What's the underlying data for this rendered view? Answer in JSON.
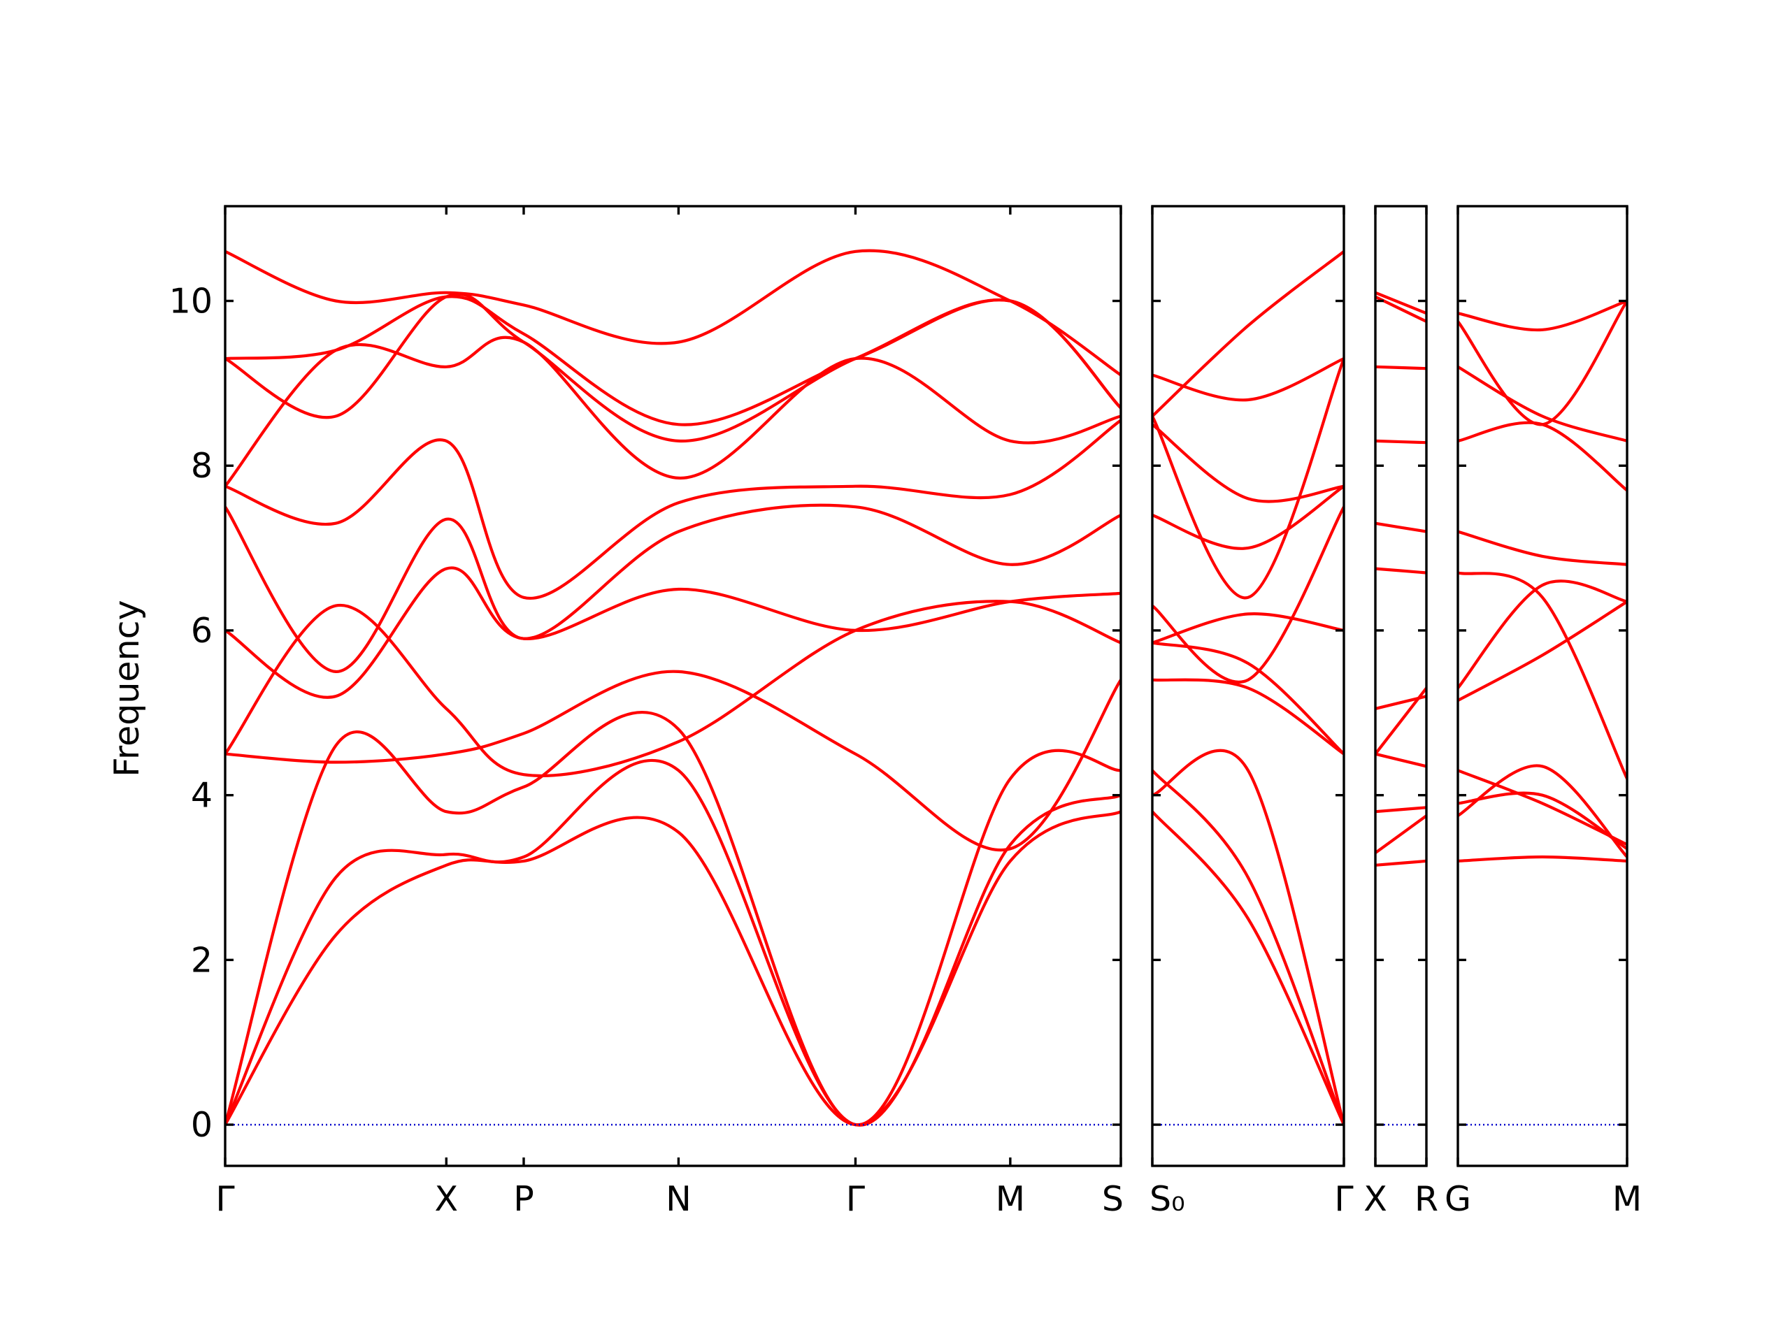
{
  "chart_data": {
    "type": "line",
    "ylabel": "Frequency",
    "ylim": [
      -0.5,
      11.15
    ],
    "yticks": [
      0,
      2,
      4,
      6,
      8,
      10
    ],
    "colors": {
      "bands": "#ff0000",
      "zero_line": "#0000cc",
      "axes": "#000000"
    },
    "zero_line": true,
    "grid": false,
    "panels": [
      {
        "x": [
          0,
          0.5,
          1,
          1.35,
          2.05,
          2.85,
          3.55,
          4.05
        ],
        "xticks": [
          {
            "x": 0,
            "label": "Γ"
          },
          {
            "x": 1,
            "label": "X"
          },
          {
            "x": 1.35,
            "label": "P"
          },
          {
            "x": 2.05,
            "label": "N"
          },
          {
            "x": 2.85,
            "label": "Γ"
          },
          {
            "x": 3.55,
            "label": "M"
          },
          {
            "x": 4.05,
            "label": "S"
          }
        ],
        "bands": [
          [
            0,
            2.3,
            3.15,
            3.2,
            3.55,
            0,
            3.2,
            3.8
          ],
          [
            0,
            3.0,
            3.28,
            3.25,
            4.3,
            0,
            3.4,
            4.0
          ],
          [
            0,
            4.6,
            3.8,
            4.1,
            4.8,
            0,
            4.2,
            4.3
          ],
          [
            4.5,
            4.4,
            4.5,
            4.75,
            5.5,
            4.5,
            3.35,
            5.4
          ],
          [
            4.5,
            6.3,
            5.05,
            4.25,
            4.65,
            6.0,
            6.35,
            5.85
          ],
          [
            6.0,
            5.2,
            6.75,
            5.9,
            6.5,
            6.0,
            6.35,
            6.45
          ],
          [
            7.5,
            5.5,
            7.35,
            5.9,
            7.2,
            7.5,
            6.8,
            7.4
          ],
          [
            7.75,
            7.3,
            8.3,
            6.4,
            7.55,
            7.75,
            7.65,
            8.55
          ],
          [
            7.75,
            9.4,
            9.2,
            9.5,
            7.85,
            9.3,
            8.3,
            8.6
          ],
          [
            9.3,
            8.6,
            10.05,
            9.5,
            8.3,
            9.3,
            10.0,
            8.7
          ],
          [
            9.3,
            9.4,
            10.05,
            9.6,
            8.5,
            9.3,
            10.0,
            8.7
          ],
          [
            10.6,
            10.0,
            10.1,
            9.95,
            9.5,
            10.6,
            10.0,
            9.1
          ]
        ]
      },
      {
        "x": [
          0,
          0.5,
          1
        ],
        "xticks": [
          {
            "x": 0,
            "label": "S₀"
          },
          {
            "x": 1,
            "label": "Γ"
          }
        ],
        "bands": [
          [
            3.8,
            2.5,
            0
          ],
          [
            4.0,
            4.3,
            0
          ],
          [
            4.3,
            3.0,
            0
          ],
          [
            5.4,
            5.3,
            4.5
          ],
          [
            5.85,
            5.6,
            4.5
          ],
          [
            5.85,
            6.2,
            6.0
          ],
          [
            6.3,
            5.4,
            7.5
          ],
          [
            7.4,
            7.0,
            7.75
          ],
          [
            8.5,
            7.6,
            7.75
          ],
          [
            8.6,
            6.4,
            9.3
          ],
          [
            9.1,
            8.8,
            9.3
          ],
          [
            8.6,
            9.7,
            10.6
          ]
        ]
      },
      {
        "x": [
          0,
          1
        ],
        "xticks": [
          {
            "x": 0,
            "label": "X"
          },
          {
            "x": 1,
            "label": "R"
          }
        ],
        "bands": [
          [
            3.15,
            3.2
          ],
          [
            3.3,
            3.75
          ],
          [
            3.8,
            3.85
          ],
          [
            4.5,
            4.35
          ],
          [
            4.5,
            5.3
          ],
          [
            5.05,
            5.2
          ],
          [
            6.75,
            6.7
          ],
          [
            7.3,
            7.2
          ],
          [
            8.3,
            8.28
          ],
          [
            9.2,
            9.18
          ],
          [
            10.05,
            9.75
          ],
          [
            10.1,
            9.85
          ]
        ]
      },
      {
        "x": [
          0,
          0.5,
          1
        ],
        "xticks": [
          {
            "x": 0,
            "label": "G"
          },
          {
            "x": 1,
            "label": "M"
          }
        ],
        "bands": [
          [
            3.2,
            3.25,
            3.2
          ],
          [
            3.75,
            4.35,
            3.25
          ],
          [
            3.9,
            4.0,
            3.35
          ],
          [
            4.3,
            3.9,
            3.4
          ],
          [
            5.15,
            5.7,
            6.35
          ],
          [
            5.3,
            6.55,
            6.35
          ],
          [
            6.7,
            6.4,
            4.2
          ],
          [
            7.2,
            6.9,
            6.8
          ],
          [
            8.3,
            8.5,
            7.7
          ],
          [
            9.2,
            8.6,
            8.3
          ],
          [
            9.75,
            8.5,
            10.0
          ],
          [
            9.85,
            9.65,
            10.0
          ]
        ]
      }
    ]
  }
}
